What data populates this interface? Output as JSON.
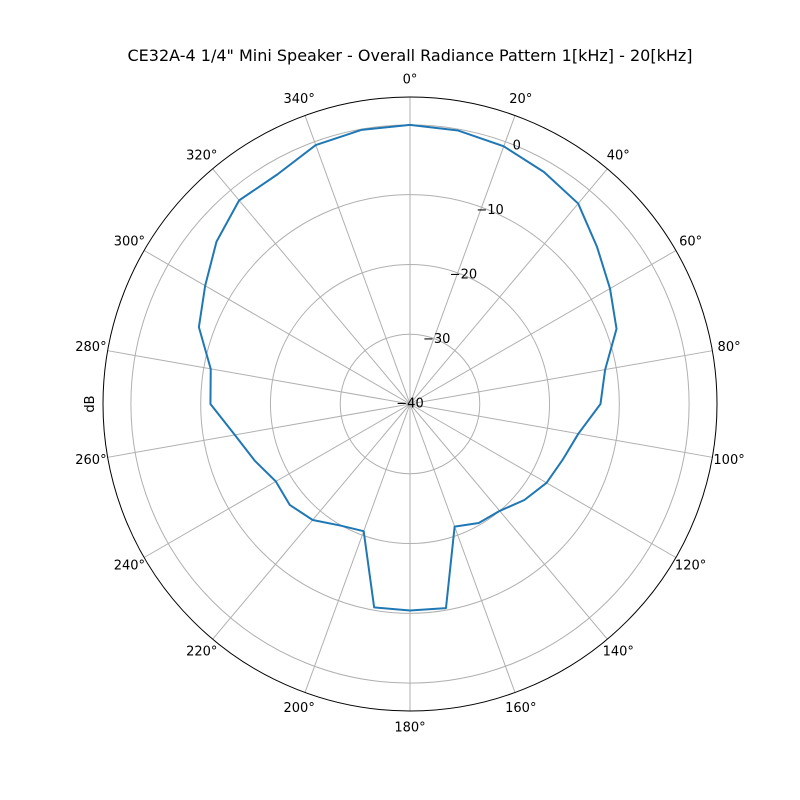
{
  "chart_data": {
    "type": "polar-line",
    "title": "CE32A-4 1/4\" Mini Speaker - Overall Radiance Pattern 1[kHz] - 20[kHz]",
    "ylabel": "dB",
    "theta_zero": "top",
    "theta_direction": "clockwise",
    "angle_ticks": [
      "0°",
      "20°",
      "40°",
      "60°",
      "80°",
      "100°",
      "120°",
      "140°",
      "160°",
      "180°",
      "200°",
      "220°",
      "240°",
      "260°",
      "280°",
      "300°",
      "320°",
      "340°"
    ],
    "angle_tick_values": [
      0,
      20,
      40,
      60,
      80,
      100,
      120,
      140,
      160,
      180,
      200,
      220,
      240,
      260,
      280,
      300,
      320,
      340
    ],
    "radial_ticks": [
      "0",
      "−10",
      "−20",
      "−30",
      "−40"
    ],
    "radial_tick_values": [
      0,
      -10,
      -20,
      -30,
      -40
    ],
    "rlim": [
      -40,
      4
    ],
    "grid": true,
    "color": "#1f77b4",
    "series": [
      {
        "theta": [
          0,
          10,
          20,
          30,
          40,
          50,
          60,
          70,
          80,
          90,
          100,
          110,
          120,
          130,
          140,
          150,
          160,
          170,
          180,
          190,
          200,
          210,
          220,
          230,
          240,
          250,
          260,
          270,
          280,
          290,
          300,
          310,
          320,
          330,
          340,
          350
        ],
        "values": [
          0,
          -0.2,
          -0.7,
          -1.6,
          -2.5,
          -5.0,
          -6.9,
          -8.5,
          -11.6,
          -12.7,
          -15.5,
          -16.7,
          -17.4,
          -18.6,
          -20.0,
          -20.3,
          -21.3,
          -10.3,
          -10.4,
          -10.4,
          -20.6,
          -19.9,
          -18.3,
          -17.5,
          -17.8,
          -16.3,
          -14.5,
          -11.4,
          -11.0,
          -7.8,
          -6.1,
          -3.8,
          -1.9,
          -2.0,
          -0.5,
          -0.1
        ]
      }
    ]
  }
}
